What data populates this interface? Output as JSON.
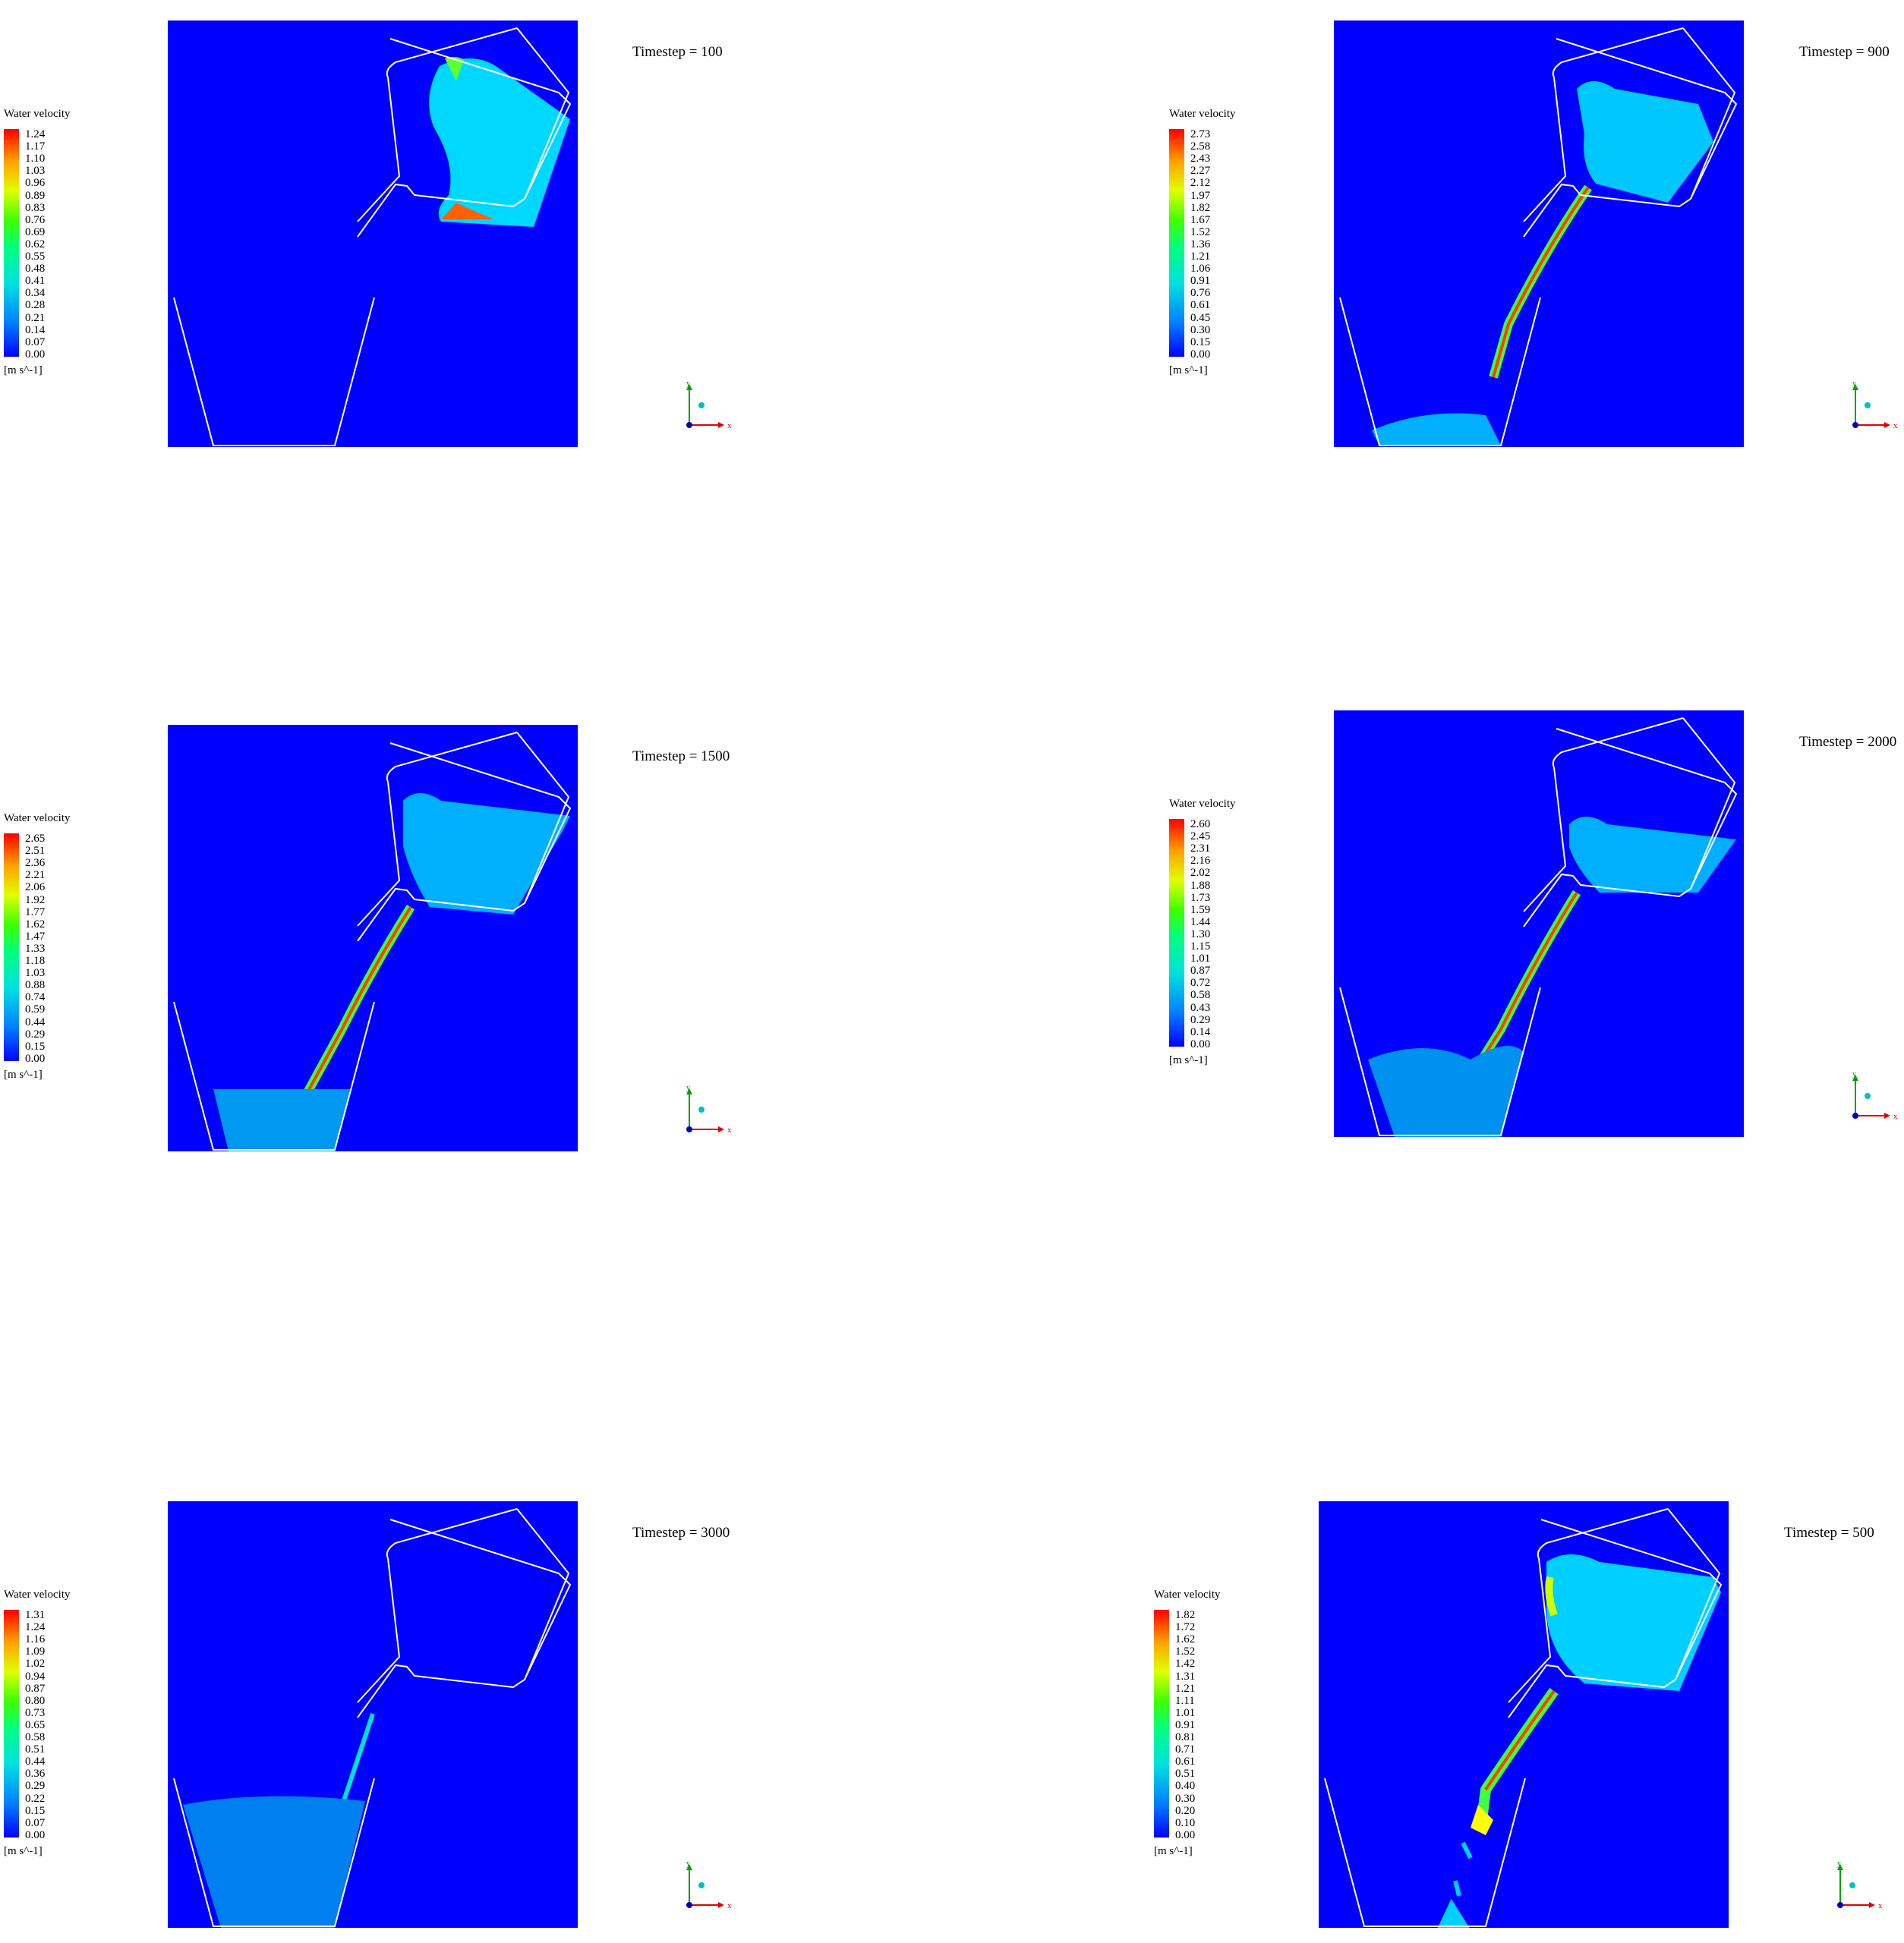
{
  "legend_title": "Water velocity",
  "legend_unit": "[m s^-1]",
  "axis_labels": {
    "x": "x",
    "y": "y"
  },
  "colors": {
    "background": "#0000ff",
    "wall": "#ffffff",
    "fluid_low": "#00b4ff",
    "fluid_mid": "#40ff40",
    "fluid_high": "#ff2000"
  },
  "panels": [
    {
      "timestep": "Timestep = 100",
      "ticks": [
        "1.24",
        "1.17",
        "1.10",
        "1.03",
        "0.96",
        "0.89",
        "0.83",
        "0.76",
        "0.69",
        "0.62",
        "0.55",
        "0.48",
        "0.41",
        "0.34",
        "0.28",
        "0.21",
        "0.14",
        "0.07",
        "0.00"
      ]
    },
    {
      "timestep": "Timestep = 900",
      "ticks": [
        "2.73",
        "2.58",
        "2.43",
        "2.27",
        "2.12",
        "1.97",
        "1.82",
        "1.67",
        "1.52",
        "1.36",
        "1.21",
        "1.06",
        "0.91",
        "0.76",
        "0.61",
        "0.45",
        "0.30",
        "0.15",
        "0.00"
      ]
    },
    {
      "timestep": "Timestep = 1500",
      "ticks": [
        "2.65",
        "2.51",
        "2.36",
        "2.21",
        "2.06",
        "1.92",
        "1.77",
        "1.62",
        "1.47",
        "1.33",
        "1.18",
        "1.03",
        "0.88",
        "0.74",
        "0.59",
        "0.44",
        "0.29",
        "0.15",
        "0.00"
      ]
    },
    {
      "timestep": "Timestep = 2000",
      "ticks": [
        "2.60",
        "2.45",
        "2.31",
        "2.16",
        "2.02",
        "1.88",
        "1.73",
        "1.59",
        "1.44",
        "1.30",
        "1.15",
        "1.01",
        "0.87",
        "0.72",
        "0.58",
        "0.43",
        "0.29",
        "0.14",
        "0.00"
      ]
    },
    {
      "timestep": "Timestep = 3000",
      "ticks": [
        "1.31",
        "1.24",
        "1.16",
        "1.09",
        "1.02",
        "0.94",
        "0.87",
        "0.80",
        "0.73",
        "0.65",
        "0.58",
        "0.51",
        "0.44",
        "0.36",
        "0.29",
        "0.22",
        "0.15",
        "0.07",
        "0.00"
      ]
    },
    {
      "timestep": "Timestep = 500",
      "ticks": [
        "1.82",
        "1.72",
        "1.62",
        "1.52",
        "1.42",
        "1.31",
        "1.21",
        "1.11",
        "1.01",
        "0.91",
        "0.81",
        "0.71",
        "0.61",
        "0.51",
        "0.40",
        "0.30",
        "0.20",
        "0.10",
        "0.00"
      ]
    }
  ]
}
